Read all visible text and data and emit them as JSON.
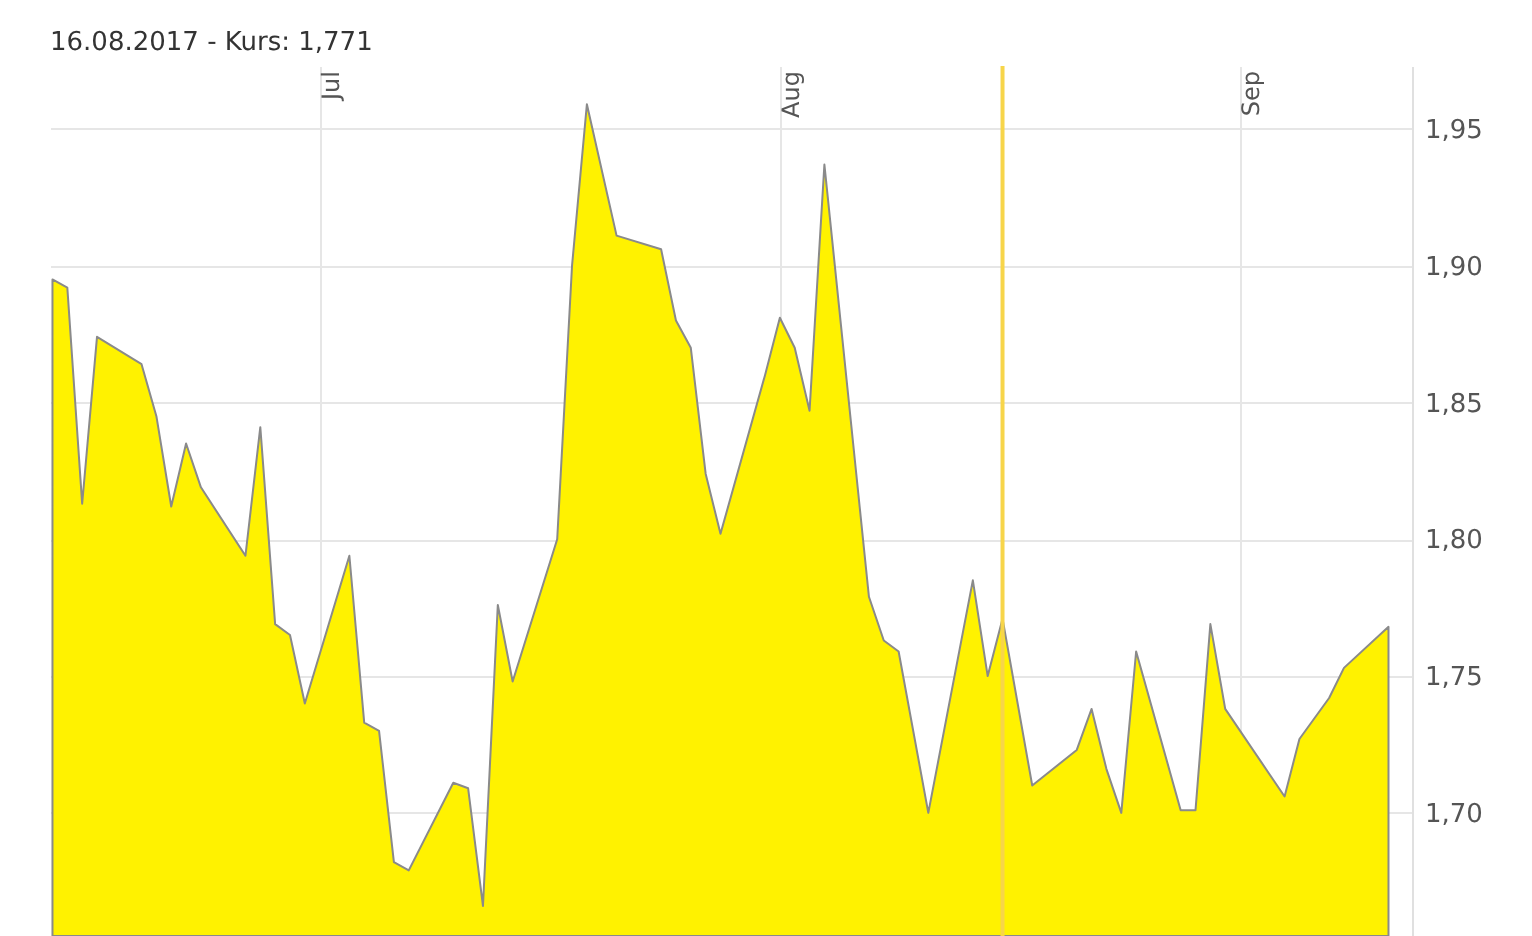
{
  "chart_data": {
    "type": "area",
    "title": "16.08.2017  -  Kurs: 1,771",
    "x": [
      "2017-06-13",
      "2017-06-14",
      "2017-06-15",
      "2017-06-16",
      "2017-06-19",
      "2017-06-20",
      "2017-06-21",
      "2017-06-22",
      "2017-06-23",
      "2017-06-26",
      "2017-06-27",
      "2017-06-28",
      "2017-06-29",
      "2017-06-30",
      "2017-07-03",
      "2017-07-04",
      "2017-07-05",
      "2017-07-06",
      "2017-07-07",
      "2017-07-10",
      "2017-07-11",
      "2017-07-12",
      "2017-07-13",
      "2017-07-14",
      "2017-07-17",
      "2017-07-18",
      "2017-07-19",
      "2017-07-21",
      "2017-07-24",
      "2017-07-25",
      "2017-07-26",
      "2017-07-27",
      "2017-07-28",
      "2017-07-31",
      "2017-08-01",
      "2017-08-02",
      "2017-08-03",
      "2017-08-04",
      "2017-08-07",
      "2017-08-08",
      "2017-08-09",
      "2017-08-11",
      "2017-08-14",
      "2017-08-15",
      "2017-08-16",
      "2017-08-18",
      "2017-08-21",
      "2017-08-22",
      "2017-08-23",
      "2017-08-24",
      "2017-08-25",
      "2017-08-28",
      "2017-08-29",
      "2017-08-30",
      "2017-08-31",
      "2017-09-04",
      "2017-09-05",
      "2017-09-07",
      "2017-09-08",
      "2017-09-11"
    ],
    "series": [
      {
        "color": "#fff200",
        "values": [
          1.895,
          1.892,
          1.813,
          1.874,
          1.864,
          1.845,
          1.812,
          1.835,
          1.819,
          1.794,
          1.841,
          1.769,
          1.765,
          1.74,
          1.794,
          1.733,
          1.73,
          1.682,
          1.679,
          1.711,
          1.709,
          1.666,
          1.776,
          1.748,
          1.8,
          1.9,
          1.959,
          1.911,
          1.906,
          1.88,
          1.87,
          1.824,
          1.802,
          1.86,
          1.881,
          1.87,
          1.847,
          1.937,
          1.779,
          1.763,
          1.759,
          1.7,
          1.785,
          1.75,
          1.771,
          1.71,
          1.723,
          1.738,
          1.716,
          1.7,
          1.759,
          1.701,
          1.701,
          1.769,
          1.738,
          1.706,
          1.727,
          1.742,
          1.753,
          1.768
        ]
      }
    ],
    "xlim": [
      "2017-06-12T20:00",
      "2017-09-12T14:00"
    ],
    "xticks": [
      {
        "value": "2017-07-01",
        "label": "Jul"
      },
      {
        "value": "2017-08-01",
        "label": "Aug"
      },
      {
        "value": "2017-09-01",
        "label": "Sep"
      }
    ],
    "ylim": [
      1.655,
      1.973
    ],
    "yticks": [
      {
        "value": 1.7,
        "label": "1,70"
      },
      {
        "value": 1.75,
        "label": "1,75"
      },
      {
        "value": 1.8,
        "label": "1,80"
      },
      {
        "value": 1.85,
        "label": "1,85"
      },
      {
        "value": 1.9,
        "label": "1,90"
      },
      {
        "value": 1.95,
        "label": "1,95"
      }
    ],
    "ref_lines": [
      {
        "axis": "x",
        "value": "2017-08-16",
        "color": "#f7d54a"
      }
    ],
    "grid": true
  }
}
